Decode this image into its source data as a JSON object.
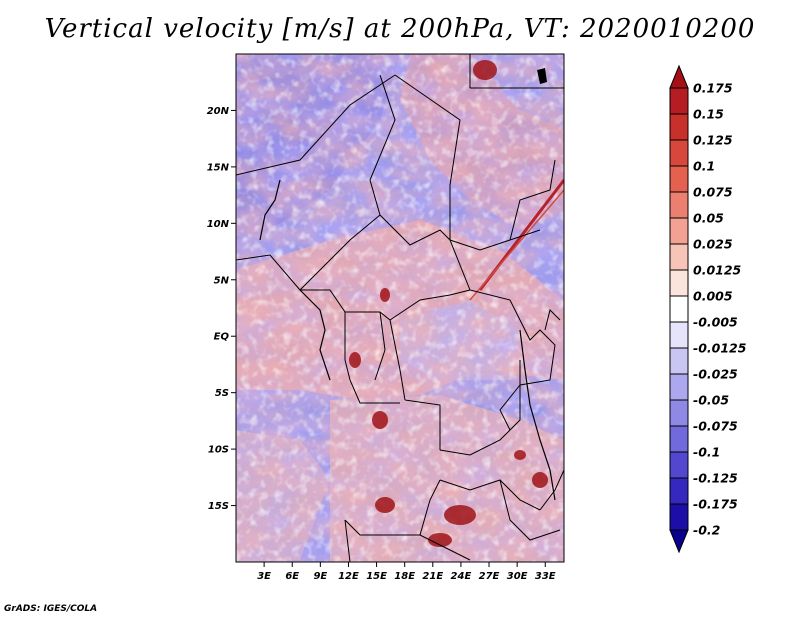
{
  "title": "Vertical velocity [m/s] at 200hPa, VT: 2020010200",
  "map": {
    "lon_range": [
      0,
      35
    ],
    "lat_range": [
      -20,
      25
    ],
    "lat_ticks": [
      "20N",
      "15N",
      "10N",
      "5N",
      "EQ",
      "5S",
      "10S",
      "15S"
    ],
    "lat_values": [
      20,
      15,
      10,
      5,
      0,
      -5,
      -10,
      -15
    ],
    "lon_ticks": [
      "3E",
      "6E",
      "9E",
      "12E",
      "15E",
      "18E",
      "21E",
      "24E",
      "27E",
      "30E",
      "33E"
    ],
    "lon_values": [
      3,
      6,
      9,
      12,
      15,
      18,
      21,
      24,
      27,
      30,
      33
    ]
  },
  "colorbar": {
    "labels": [
      "0.175",
      "0.15",
      "0.125",
      "0.1",
      "0.075",
      "0.05",
      "0.025",
      "0.0125",
      "0.005",
      "-0.005",
      "-0.0125",
      "-0.025",
      "-0.05",
      "-0.075",
      "-0.1",
      "-0.125",
      "-0.175",
      "-0.2"
    ],
    "colors": [
      "#a50f15",
      "#b51d22",
      "#c8302c",
      "#d8473b",
      "#e4614f",
      "#ec8070",
      "#f2a192",
      "#f7c4b8",
      "#fbe4dc",
      "#ffffff",
      "#e6e4fb",
      "#cac6f4",
      "#aca8ee",
      "#8f89e6",
      "#716adc",
      "#5148cf",
      "#3428bf",
      "#1c0ea6",
      "#0a0090"
    ]
  },
  "credit": "GrADS: IGES/COLA"
}
